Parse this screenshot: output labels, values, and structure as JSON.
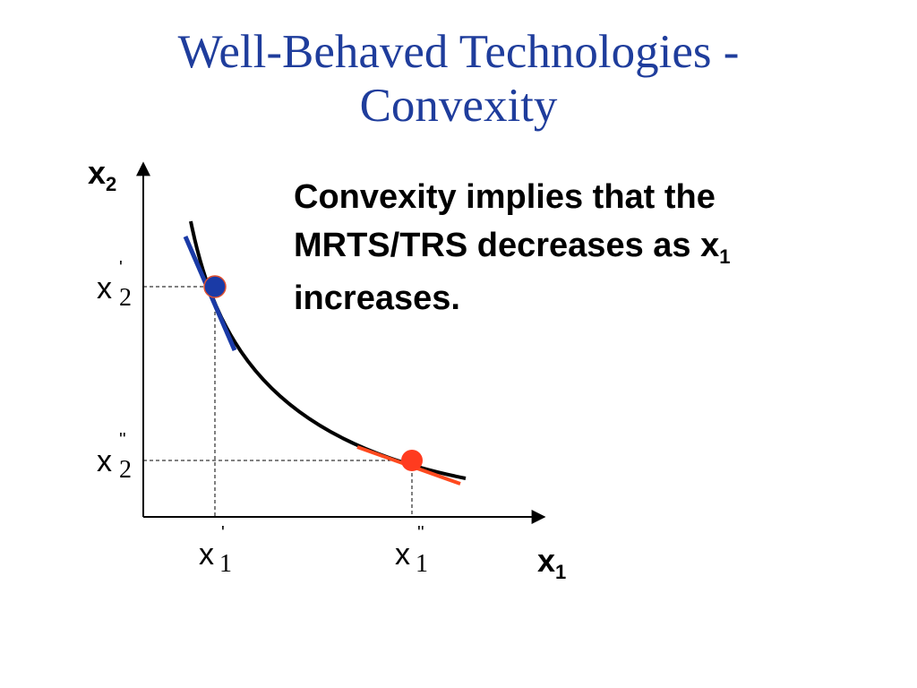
{
  "title": {
    "line1": "Well-Behaved Technologies -",
    "line2": "Convexity",
    "color": "#1f3d9c"
  },
  "caption": {
    "line1": "Convexity implies that the",
    "line2_text": "MRTS/TRS decreases as x",
    "line2_sub": "1",
    "line3": "increases."
  },
  "diagram": {
    "y_axis_label": {
      "base": "x",
      "sub": "2"
    },
    "x_axis_label": {
      "base": "x",
      "sub": "1"
    },
    "tick_labels": {
      "x2_prime": {
        "base": "x",
        "sub": "2",
        "mark": "'"
      },
      "x2_double_prime": {
        "base": "x",
        "sub": "2",
        "mark": "''"
      },
      "x1_prime": {
        "base": "x",
        "sub": "1",
        "mark": "'"
      },
      "x1_double_prime": {
        "base": "x",
        "sub": "1",
        "mark": "''"
      }
    },
    "colors": {
      "curve": "#000000",
      "point_prime": "#1a3aa6",
      "point_double_prime": "#ff3b1f",
      "tangent_prime": "#1a3aa6",
      "tangent_double_prime": "#ff4a1f",
      "guides": "#000000"
    },
    "elements": [
      "convex-isoquant",
      "tangent-at-x-prime",
      "tangent-at-x-double-prime",
      "dashed-guides"
    ]
  }
}
